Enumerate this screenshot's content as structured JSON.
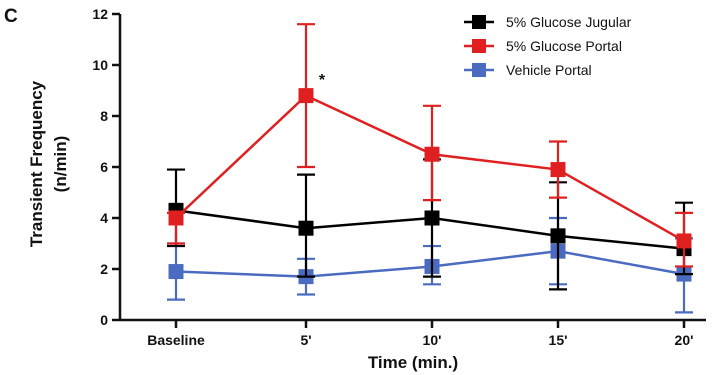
{
  "panel_label": "C",
  "chart_data": {
    "type": "line",
    "title": "",
    "xlabel": "Time (min.)",
    "ylabel": "Transient Frequency (n/min)",
    "ylabel_lines": [
      "Transient Frequency",
      "(n/min)"
    ],
    "categories": [
      "Baseline",
      "5'",
      "10'",
      "15'",
      "20'"
    ],
    "ylim": [
      0,
      12
    ],
    "yticks": [
      0,
      2,
      4,
      6,
      8,
      10,
      12
    ],
    "grid": false,
    "legend_position": "top-right",
    "series": [
      {
        "name": "5% Glucose Jugular",
        "color": "#000000",
        "values": [
          4.3,
          3.6,
          4.0,
          3.3,
          2.8
        ],
        "error_low": [
          1.4,
          1.9,
          2.3,
          2.1,
          1.0
        ],
        "error_high": [
          1.6,
          2.1,
          2.3,
          2.1,
          1.8
        ]
      },
      {
        "name": "5% Glucose Portal",
        "color": "#e02020",
        "values": [
          4.0,
          8.8,
          6.5,
          5.9,
          3.1
        ],
        "error_low": [
          1.0,
          2.8,
          1.8,
          1.1,
          1.0
        ],
        "error_high": [
          0.2,
          2.8,
          1.9,
          1.1,
          1.1
        ]
      },
      {
        "name": "Vehicle Portal",
        "color": "#4a6bc0",
        "values": [
          1.9,
          1.7,
          2.1,
          2.7,
          1.8
        ],
        "error_low": [
          1.1,
          0.7,
          0.7,
          1.3,
          1.5
        ],
        "error_high": [
          1.1,
          0.7,
          0.8,
          1.3,
          1.4
        ]
      }
    ],
    "annotations": [
      {
        "text": "*",
        "category_index": 1,
        "y": 9.6
      }
    ]
  }
}
